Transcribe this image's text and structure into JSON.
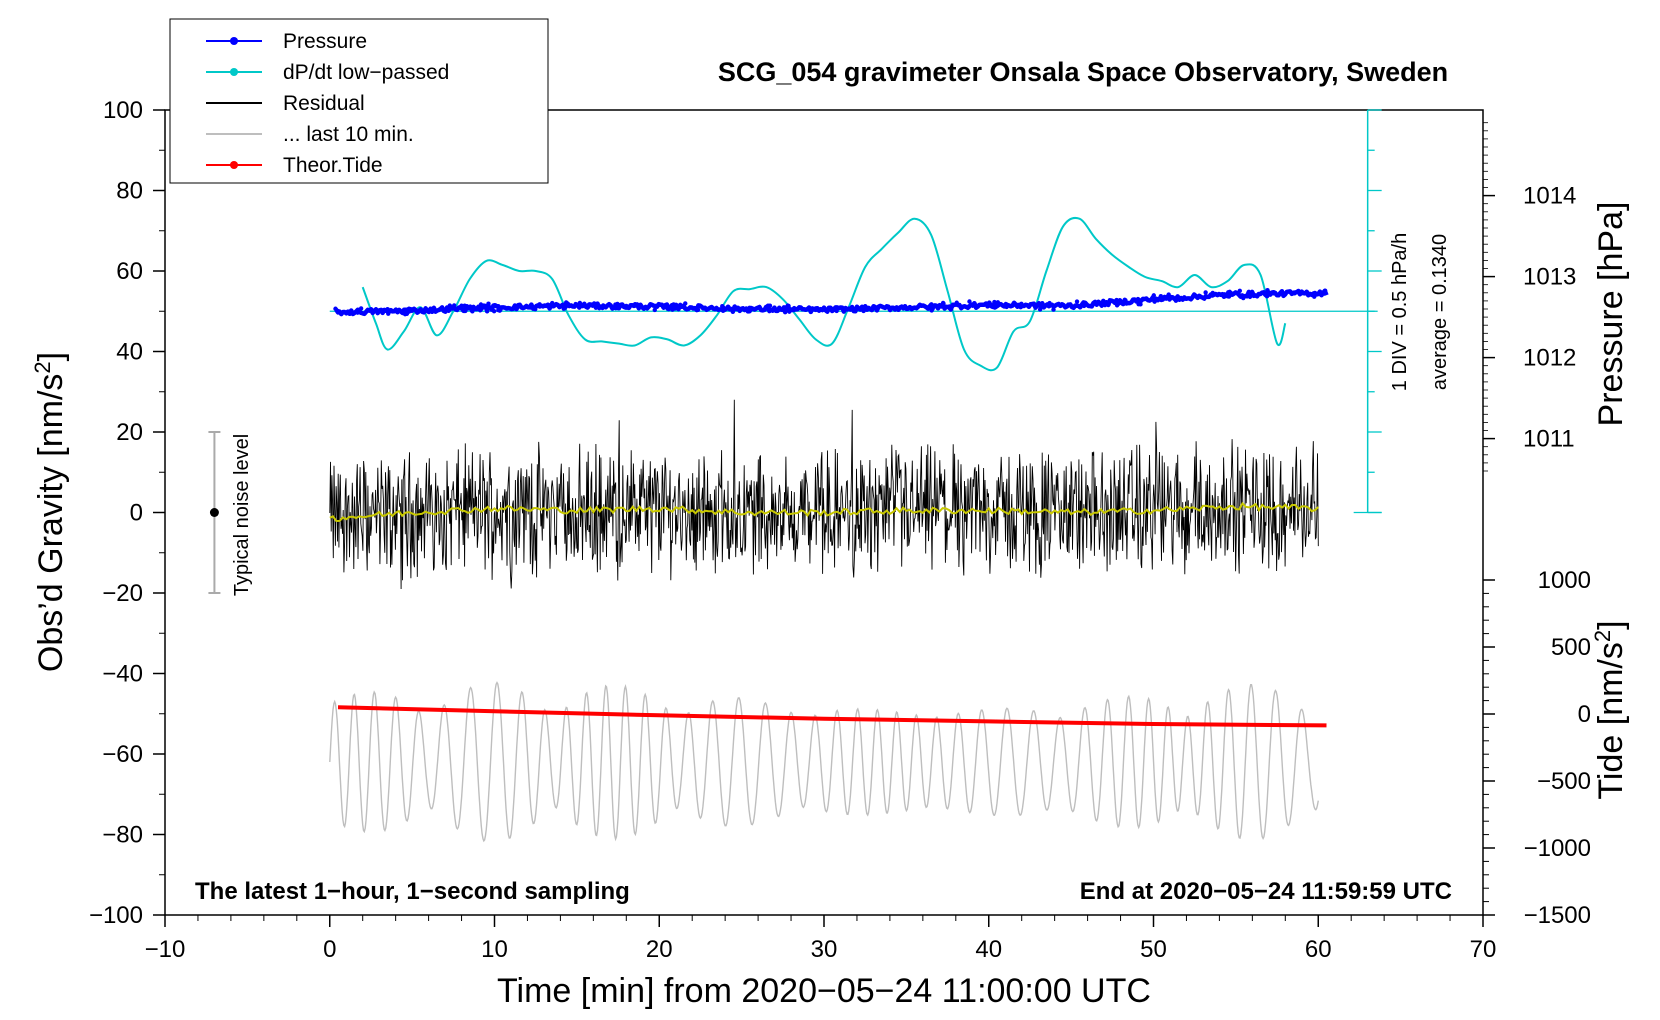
{
  "chart_data": {
    "type": "line",
    "title": "SCG_054 gravimeter Onsala Space Observatory, Sweden",
    "xlabel": "Time [min] from 2020−05−24 11:00:00 UTC",
    "ylabel_left": "Obs’d Gravity [nm/s",
    "ylabel_left_sup": "2",
    "ylabel_left_end": "]",
    "ylabel_right_pressure": "Pressure [hPa]",
    "ylabel_right_tide": "Tide [nm/s",
    "ylabel_right_tide_sup": "2",
    "ylabel_right_tide_end": "]",
    "xlim": [
      -10,
      70
    ],
    "ylim": [
      -100,
      100
    ],
    "x_ticks": [
      "−10",
      "0",
      "10",
      "20",
      "30",
      "40",
      "50",
      "60",
      "70"
    ],
    "y_ticks": [
      "−100",
      "−80",
      "−60",
      "−40",
      "−20",
      "0",
      "20",
      "40",
      "60",
      "80",
      "100"
    ],
    "pressure_ticks": [
      "1011",
      "1012",
      "1013",
      "1014"
    ],
    "tide_ticks": [
      "−1500",
      "−1000",
      "−500",
      "0",
      "500",
      "1000"
    ],
    "legend": [
      {
        "label": "Pressure",
        "color": "#0000ff",
        "marker": true
      },
      {
        "label": "dP/dt low−passed",
        "color": "#00c8c8",
        "marker": true
      },
      {
        "label": "Residual",
        "color": "#000000",
        "marker": false
      },
      {
        "label": "... last 10 min.",
        "color": "#bebebe",
        "marker": false
      },
      {
        "label": "Theor.Tide",
        "color": "#ff0000",
        "marker": true
      }
    ],
    "notes": {
      "left": "The latest 1−hour, 1−second sampling",
      "right": "End at 2020−05−24 11:59:59 UTC"
    },
    "noise_label": "Typical noise level",
    "noise_range": [
      -20,
      20
    ],
    "noise_x": -7,
    "dpdt_scale_label": "1 DIV = 0.5 hPa/h",
    "dpdt_average_label": "average = 0.1340",
    "dpdt_axis_x": 63,
    "dpdt_baseline": 50,
    "series": [
      {
        "name": "Pressure",
        "color": "#0000ff",
        "unit": "hPa",
        "x": [
          0.3,
          5,
          10,
          15,
          20,
          25,
          30,
          35,
          40,
          45,
          50,
          55,
          60.5
        ],
        "values": [
          1012.56,
          1012.58,
          1012.62,
          1012.64,
          1012.63,
          1012.6,
          1012.59,
          1012.62,
          1012.65,
          1012.64,
          1012.72,
          1012.78,
          1012.8
        ]
      },
      {
        "name": "dP/dt low−passed",
        "color": "#00c8c8",
        "unit": "plotted on gravity scale, offset 50",
        "x": [
          2,
          2.8,
          3.5,
          4.5,
          5.5,
          6.5,
          7.5,
          8.5,
          9.5,
          10.5,
          11.5,
          12.5,
          13.5,
          14.5,
          15.5,
          16.5,
          17.5,
          18.5,
          19.5,
          20.5,
          21.5,
          22.5,
          23.5,
          24.5,
          25.5,
          26.5,
          27.5,
          28.5,
          29.5,
          30.5,
          31.5,
          32.5,
          33.5,
          34.5,
          35.5,
          36.5,
          37.5,
          38.5,
          39.5,
          40.5,
          41.5,
          42.5,
          43.5,
          44.5,
          45.5,
          46.5,
          47.5,
          48.5,
          49.5,
          50.5,
          51.5,
          52.5,
          53.5,
          54.5,
          55.5,
          56.5,
          57.5,
          58
        ],
        "values": [
          56,
          47,
          40.5,
          45,
          51,
          44,
          50,
          58,
          62.5,
          61.5,
          60,
          60,
          58,
          49,
          43,
          42.5,
          42,
          41.5,
          43.5,
          43,
          41.5,
          44,
          49,
          55,
          55.5,
          56,
          53,
          48,
          43,
          42,
          51,
          61,
          65.5,
          69.5,
          73,
          69,
          55,
          40.5,
          36.5,
          36,
          45,
          47.5,
          60,
          71,
          73,
          68,
          64,
          61,
          58.5,
          57.5,
          56,
          59,
          56,
          57.5,
          61.5,
          59,
          42,
          47
        ]
      },
      {
        "name": "Residual",
        "color": "#000000",
        "x_range": [
          0,
          60
        ],
        "envelope": [
          -25,
          28
        ]
      },
      {
        "name": "Residual smoothed",
        "color": "#c8c800",
        "x": [
          0,
          5,
          10,
          15,
          20,
          25,
          30,
          35,
          40,
          45,
          50,
          55,
          60
        ],
        "values": [
          -1.5,
          0,
          1,
          0.5,
          1,
          0,
          0,
          0.5,
          0.5,
          0,
          0.5,
          1.5,
          1
        ]
      },
      {
        "name": "... last 10 min.",
        "color": "#bebebe",
        "x_range": [
          0,
          60
        ],
        "envelope": [
          -83,
          -41
        ]
      },
      {
        "name": "Theor.Tide",
        "color": "#ff0000",
        "unit": "nm/s2",
        "x": [
          0.5,
          10,
          20,
          30,
          40,
          50,
          60.5
        ],
        "values": [
          50,
          20,
          -10,
          -35,
          -55,
          -75,
          -85
        ]
      }
    ]
  }
}
